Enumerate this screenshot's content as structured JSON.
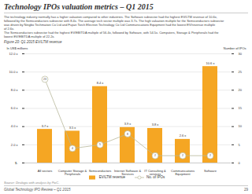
{
  "chart_data": {
    "type": "bar",
    "title": "Technology IPOs valuation metrics – Q1 2015",
    "subtitle": "The technology industry normally has a higher valuation compared to other industries. The Software subsector had the highest EV/LTM revenue of 10.6x,\nfollowed by the Semiconductors subsector with 8.4x. The average tech sector multiple was 3.7x. The high valuation multiple for the Semiconductors subsector\nwas driven by Ningbo Techmation Co Ltd and Fujian Torch Electron Technology Co Ltd Communications Equipment had the lowest EV/revenue multiple\nof 2.6x.\nThe Semiconductors subsector had the highest EV/EBITDA multiple of 56.4x, followed by Software, with 54.5x. Computers, Storage & Peripherals had the\nlowest EV/EBITDA multiple of 22.2x.",
    "annotations": [
      "Figure 20: Q1 2015 EV/LTM revenue",
      "Source: Dealogic with analysis by PwC.",
      "Global Technology IPO Review – Q1 2015",
      "29"
    ],
    "categories": [
      "All sectors",
      "Computer Storage &\nPeripherals",
      "Semiconductors",
      "Internet Software &\nServices",
      "IT Consulting &\nservices",
      "Communications\nEquipment",
      "Software"
    ],
    "series": [
      {
        "name": "EV/LTM revenue",
        "type": "bar",
        "color": "#F5A623",
        "values": [
          3.7,
          3.5,
          8.4,
          3.9,
          3.8,
          2.6,
          10.6
        ],
        "value_labels": [
          "3.7 x",
          "3.5 x",
          "8.4 x",
          "3.9 x",
          "3.8 x",
          "2.6 x",
          "10.6 x"
        ]
      },
      {
        "name": "No. of IPOs",
        "type": "line",
        "axis": "y2",
        "color": "#B8B89A",
        "marker": "circle",
        "values": [
          23,
          4,
          5,
          8,
          2,
          2,
          2
        ]
      }
    ],
    "ylabel": "In US$ millions",
    "y2label": "Number of IPOs",
    "ylim": [
      0,
      12.0
    ],
    "yticks": [
      {
        "value": 0,
        "label": "$-"
      },
      {
        "value": 2.0,
        "label": "2.0 x"
      },
      {
        "value": 4.0,
        "label": "4.0 x"
      },
      {
        "value": 6.0,
        "label": "6.0 x"
      },
      {
        "value": 8.0,
        "label": "8.0 x"
      },
      {
        "value": 10.0,
        "label": "10.0 x"
      },
      {
        "value": 12.0,
        "label": "12.0 x"
      }
    ],
    "y2lim": [
      0,
      30
    ],
    "y2ticks": [
      0,
      5,
      10,
      15,
      20,
      25,
      30
    ],
    "grid": true,
    "legend": "bottom",
    "data_labels": true
  }
}
